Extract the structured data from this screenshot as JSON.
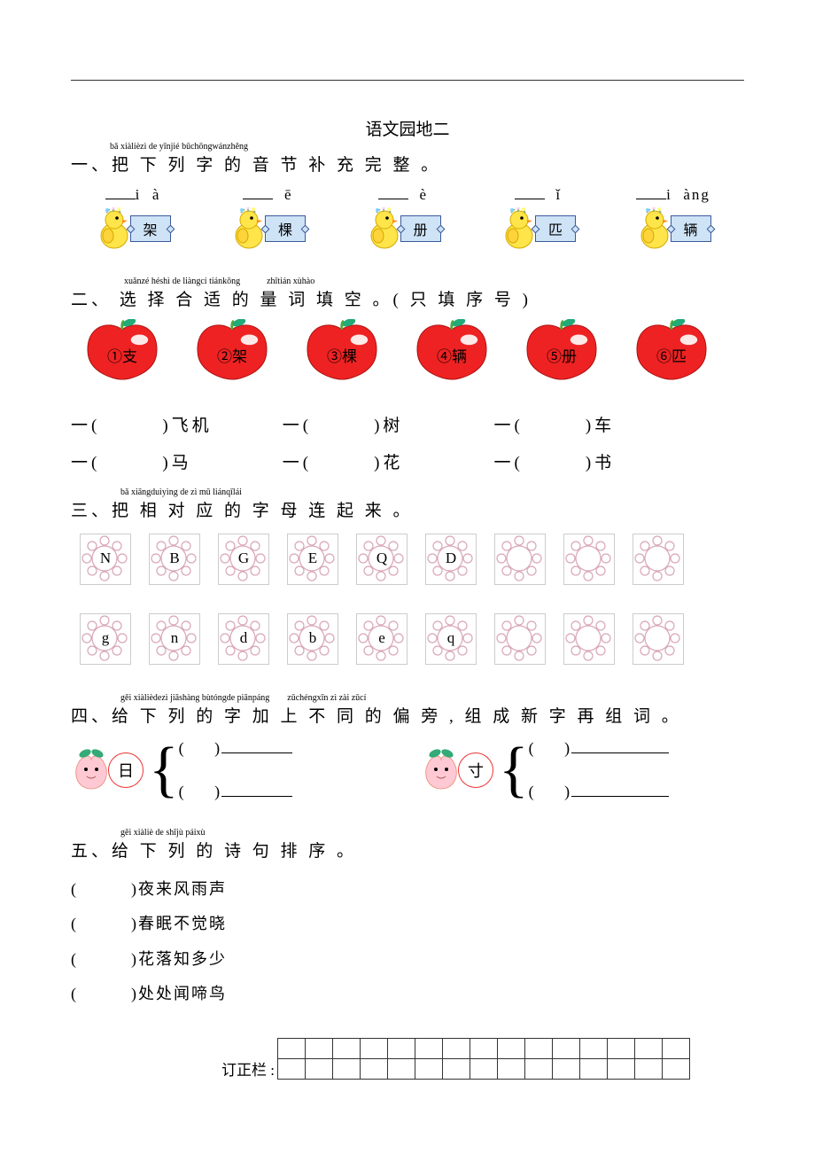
{
  "page": {
    "title": "语文园地二",
    "colors": {
      "plaque_bg": "#cfe3f7",
      "plaque_border": "#3a5a9a",
      "apple_body": "#e22",
      "apple_shine": "#fff",
      "apple_leaf": "#2a7",
      "flower_stroke": "#d9a6b8",
      "circle_border": "#e33",
      "grid_border": "#333"
    }
  },
  "q1": {
    "pinyin": "bǎ xiàlièzì  de yīnjié bǔchōngwánzhěng",
    "heading": "一、把 下 列 字 的 音 节 补 充 完 整 。",
    "items": [
      {
        "blank_prefix": "",
        "blank_mid": "i",
        "blank_suffix": "à",
        "char": "架"
      },
      {
        "blank_prefix": "",
        "blank_mid": "",
        "blank_suffix": "ē",
        "char": "棵"
      },
      {
        "blank_prefix": "",
        "blank_mid": "",
        "blank_suffix": "è",
        "char": "册"
      },
      {
        "blank_prefix": "",
        "blank_mid": "",
        "blank_suffix": "ǐ",
        "char": "匹"
      },
      {
        "blank_prefix": "",
        "blank_mid": "i",
        "blank_suffix": "àng",
        "char": "辆"
      }
    ]
  },
  "q2": {
    "pinyin_a": "xuǎnzé héshì de liàngcí tiánkōng",
    "pinyin_b": "zhǐtián xùhào",
    "heading": "二、 选 择 合 适 的 量 词 填 空 。( 只 填 序 号 )",
    "apples": [
      {
        "label": "①支"
      },
      {
        "label": "②架"
      },
      {
        "label": "③棵"
      },
      {
        "label": "④辆"
      },
      {
        "label": "⑤册"
      },
      {
        "label": "⑥匹"
      }
    ],
    "line1": {
      "a": "一(",
      "a2": ")飞机",
      "b": "一(",
      "b2": ")树",
      "c": "一(",
      "c2": ")车"
    },
    "line2": {
      "a": "一(",
      "a2": ")马",
      "b": "一(",
      "b2": ")花",
      "c": "一(",
      "c2": ")书"
    }
  },
  "q3": {
    "pinyin": "bǎ xiāngduìyìng de zì  mǔ liánqǐlái",
    "heading": "三、把  相 对 应 的 字 母 连 起 来 。",
    "row1": [
      "N",
      "B",
      "G",
      "E",
      "Q",
      "D",
      "",
      "",
      ""
    ],
    "row2": [
      "g",
      "n",
      "d",
      "b",
      "e",
      "q",
      "",
      "",
      ""
    ]
  },
  "q4": {
    "pinyin_a": "gěi xiàlièdezì jiāshàng bùtóngde piānpáng",
    "pinyin_b": "zǔchéngxīn zì zài zǔcí",
    "heading": "四、给 下 列 的 字 加 上 不 同 的 偏 旁 , 组 成 新 字 再 组 词 。",
    "blocks": [
      {
        "char": "日"
      },
      {
        "char": "寸"
      }
    ],
    "paren_open": "(",
    "paren_close": ")"
  },
  "q5": {
    "pinyin": "gěi xiàliè de shījù páixù",
    "heading": "五、给 下 列 的 诗 句 排 序 。",
    "lines": [
      {
        "text": "夜来风雨声"
      },
      {
        "text": "春眠不觉晓"
      },
      {
        "text": "花落知多少"
      },
      {
        "text": "处处闻啼鸟"
      }
    ]
  },
  "correction": {
    "label": "订正栏 :",
    "cols": 15,
    "rows": 2
  }
}
